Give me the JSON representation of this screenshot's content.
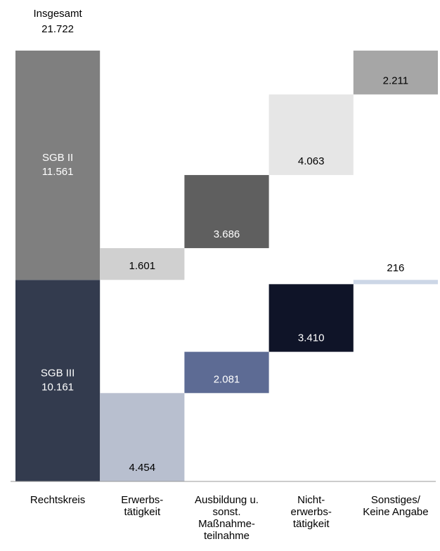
{
  "chart_data": {
    "type": "waterfall",
    "total": {
      "name": "Insgesamt",
      "value": 21722,
      "value_label": "21.722"
    },
    "categories": [
      [
        "Rechtskreis"
      ],
      [
        "Erwerbs-",
        "tätigkeit"
      ],
      [
        "Ausbildung u.",
        "sonst.",
        "Maßnahme-",
        "teilnahme"
      ],
      [
        "Nicht-",
        "erwerbs-",
        "tätigkeit"
      ],
      [
        "Sonstiges/",
        "Keine Angabe"
      ]
    ],
    "series": [
      {
        "name": "SGB III",
        "values": [
          10161,
          4454,
          2081,
          3410,
          216
        ],
        "value_labels": [
          "10.161",
          "4.454",
          "2.081",
          "3.410",
          "216"
        ],
        "colors": [
          "#333b4e",
          "#b8bfcf",
          "#5d6b94",
          "#0f1428",
          "#ccd6e6"
        ]
      },
      {
        "name": "SGB II",
        "values": [
          11561,
          1601,
          3686,
          4063,
          2211
        ],
        "value_labels": [
          "11.561",
          "1.601",
          "3.686",
          "4.063",
          "2.211"
        ],
        "colors": [
          "#7f7f7f",
          "#d0d0d0",
          "#5f5f5f",
          "#e6e6e6",
          "#a6a6a6"
        ]
      }
    ]
  }
}
